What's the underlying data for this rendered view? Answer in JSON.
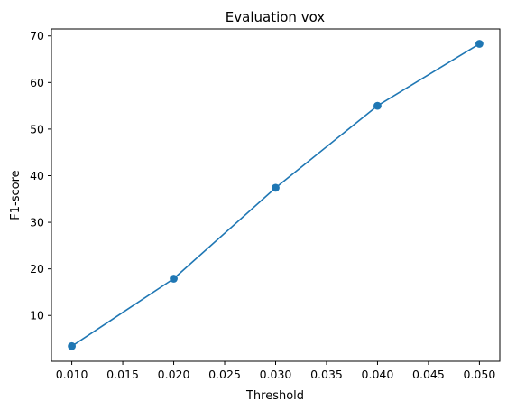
{
  "chart_data": {
    "type": "line",
    "title": "Evaluation vox",
    "xlabel": "Threshold",
    "ylabel": "F1-score",
    "x": [
      0.01,
      0.02,
      0.03,
      0.04,
      0.05
    ],
    "series": [
      {
        "values": [
          3.4,
          17.9,
          37.4,
          55.0,
          68.3
        ],
        "color": "#1f77b4",
        "marker": "circle"
      }
    ],
    "xlim": [
      0.008,
      0.052
    ],
    "ylim": [
      0.16,
      71.5
    ],
    "xticks": [
      "0.010",
      "0.015",
      "0.020",
      "0.025",
      "0.030",
      "0.035",
      "0.040",
      "0.045",
      "0.050"
    ],
    "yticks": [
      "10",
      "20",
      "30",
      "40",
      "50",
      "60",
      "70"
    ],
    "grid": false,
    "legend": "none"
  }
}
